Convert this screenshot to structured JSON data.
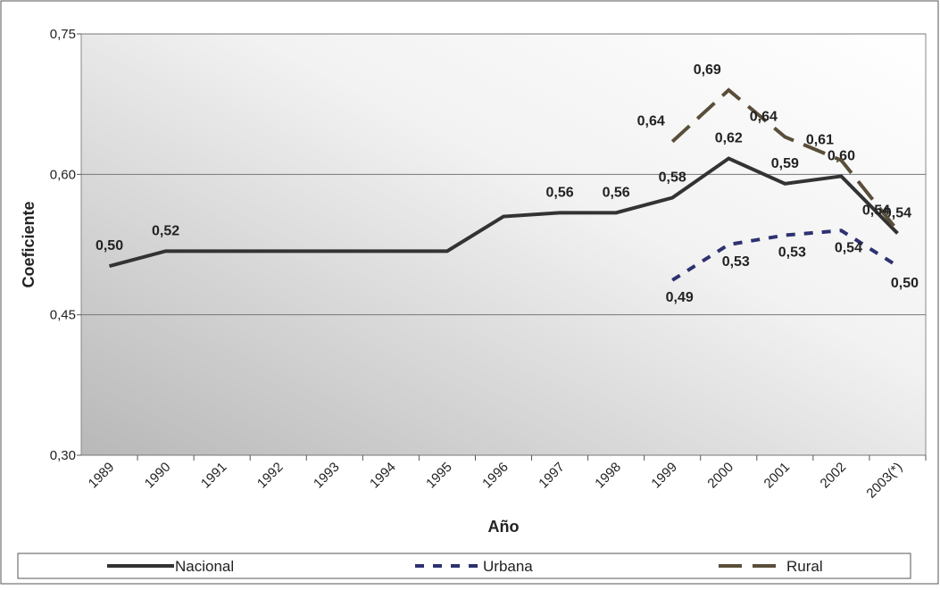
{
  "chart_data": {
    "type": "line",
    "x_label": "Año",
    "y_label": "Coeficiente",
    "categories": [
      "1989",
      "1990",
      "1991",
      "1992",
      "1993",
      "1994",
      "1995",
      "1996",
      "1997",
      "1998",
      "1999",
      "2000",
      "2001",
      "2002",
      "2003(*)"
    ],
    "ylim": [
      0.3,
      0.75
    ],
    "yticks": [
      {
        "value": 0.3,
        "label": "0,30"
      },
      {
        "value": 0.45,
        "label": "0,45"
      },
      {
        "value": 0.6,
        "label": "0,60"
      },
      {
        "value": 0.75,
        "label": "0,75"
      }
    ],
    "grid": true,
    "legend": "bottom",
    "series": [
      {
        "name": "Nacional",
        "color": "#333333",
        "dash": "solid",
        "values": [
          0.502,
          0.518,
          0.518,
          0.518,
          0.518,
          0.518,
          0.518,
          0.555,
          0.559,
          0.559,
          0.575,
          0.617,
          0.59,
          0.598,
          0.537
        ],
        "value_labels": [
          "0,50",
          "0,52",
          null,
          null,
          null,
          null,
          null,
          null,
          "0,56",
          "0,56",
          "0,58",
          "0,62",
          "0,59",
          "0,60",
          "0,54"
        ]
      },
      {
        "name": "Urbana",
        "color": "#2e3170",
        "dash": "dashed",
        "values": [
          null,
          null,
          null,
          null,
          null,
          null,
          null,
          null,
          null,
          null,
          0.487,
          0.525,
          0.535,
          0.54,
          0.502
        ],
        "value_labels": [
          null,
          null,
          null,
          null,
          null,
          null,
          null,
          null,
          null,
          null,
          "0,49",
          "0,53",
          "0,53",
          "0,54",
          "0,50"
        ]
      },
      {
        "name": "Rural",
        "color": "#5a4e3a",
        "dash": "longdash",
        "values": [
          null,
          null,
          null,
          null,
          null,
          null,
          null,
          null,
          null,
          null,
          0.635,
          0.69,
          0.64,
          0.615,
          0.54
        ],
        "value_labels": [
          null,
          null,
          null,
          null,
          null,
          null,
          null,
          null,
          null,
          null,
          "0,64",
          "0,69",
          "0,64",
          "0,61",
          "0,54"
        ]
      }
    ]
  }
}
